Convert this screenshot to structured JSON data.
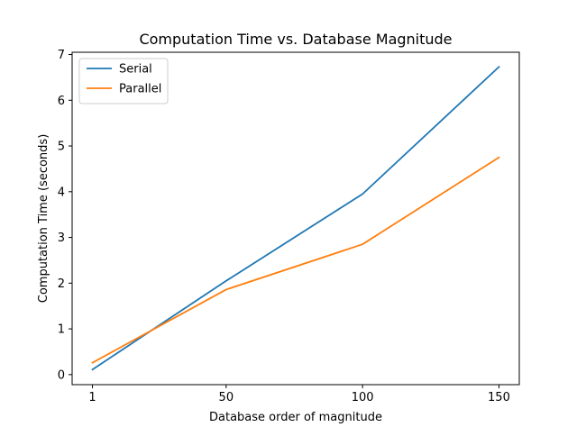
{
  "chart_data": {
    "type": "line",
    "title": "Computation Time vs. Database Magnitude",
    "xlabel": "Database order of magnitude",
    "ylabel": "Computation Time (seconds)",
    "x": [
      1,
      50,
      100,
      150
    ],
    "xticks": [
      1,
      50,
      100,
      150
    ],
    "yticks": [
      0,
      1,
      2,
      3,
      4,
      5,
      6,
      7
    ],
    "xlim": [
      -6.45,
      157.45
    ],
    "ylim": [
      -0.22,
      7.05
    ],
    "grid": false,
    "legend_position": "top-left",
    "series": [
      {
        "name": "Serial",
        "color": "#1f77b4",
        "values": [
          0.11,
          2.05,
          3.95,
          6.73
        ]
      },
      {
        "name": "Parallel",
        "color": "#ff7f0e",
        "values": [
          0.26,
          1.86,
          2.85,
          4.75
        ]
      }
    ]
  }
}
